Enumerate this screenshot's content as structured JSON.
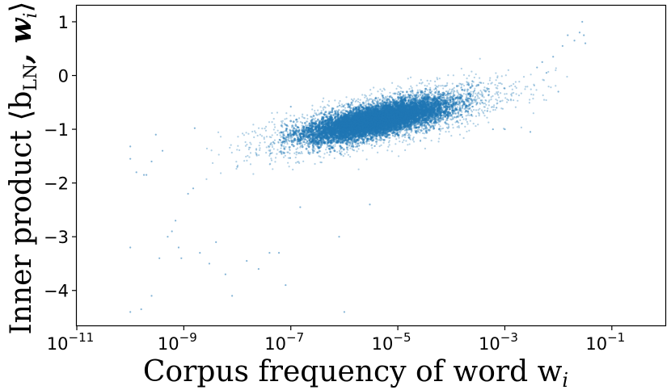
{
  "chart_data": {
    "type": "scatter",
    "title": "",
    "xlabel": "Corpus frequency of word w",
    "xlabel_subscript": "i",
    "ylabel": "Inner product ⟨b",
    "ylabel_subscript": "LN",
    "ylabel_tail": ", w",
    "ylabel_tail_subscript": "i",
    "ylabel_close": "⟩",
    "x_scale": "log",
    "xlim": [
      1e-11,
      1
    ],
    "ylim": [
      -4.65,
      1.3
    ],
    "x_ticks": [
      {
        "exponent": -11,
        "base": "10",
        "sup": "−11"
      },
      {
        "exponent": -9,
        "base": "10",
        "sup": "−9"
      },
      {
        "exponent": -7,
        "base": "10",
        "sup": "−7"
      },
      {
        "exponent": -5,
        "base": "10",
        "sup": "−5"
      },
      {
        "exponent": -3,
        "base": "10",
        "sup": "−3"
      },
      {
        "exponent": -1,
        "base": "10",
        "sup": "−1"
      }
    ],
    "y_ticks": [
      {
        "value": 1,
        "label": "1"
      },
      {
        "value": 0,
        "label": "0"
      },
      {
        "value": -1,
        "label": "−1"
      },
      {
        "value": -2,
        "label": "−2"
      },
      {
        "value": -3,
        "label": "−3"
      },
      {
        "value": -4,
        "label": "−4"
      }
    ],
    "grid": false,
    "point_color": "#1f77b4",
    "trend": {
      "slope_per_decade": 0.2,
      "value_at_1e-5": -0.75
    },
    "dense_core": {
      "x_range": [
        1e-07,
        0.0001
      ],
      "y_range": [
        -1.5,
        -0.4
      ]
    },
    "points": [
      {
        "x": 1e-10,
        "y": -1.32
      },
      {
        "x": 1e-10,
        "y": -1.55
      },
      {
        "x": 1e-10,
        "y": -3.2
      },
      {
        "x": 1e-10,
        "y": -4.4
      },
      {
        "x": 1.3e-10,
        "y": -1.8
      },
      {
        "x": 1.6e-10,
        "y": -4.35
      },
      {
        "x": 1.8e-10,
        "y": -1.85
      },
      {
        "x": 2e-10,
        "y": -1.85
      },
      {
        "x": 2.5e-10,
        "y": -4.1
      },
      {
        "x": 2.5e-10,
        "y": -1.6
      },
      {
        "x": 3e-10,
        "y": -1.1
      },
      {
        "x": 3.5e-10,
        "y": -3.4
      },
      {
        "x": 4e-10,
        "y": -1.4
      },
      {
        "x": 5e-10,
        "y": -3.0
      },
      {
        "x": 6e-10,
        "y": -2.9
      },
      {
        "x": 7e-10,
        "y": -2.7
      },
      {
        "x": 8e-10,
        "y": -3.2
      },
      {
        "x": 9e-10,
        "y": -3.4
      },
      {
        "x": 1.2e-09,
        "y": -2.2
      },
      {
        "x": 1.5e-09,
        "y": -2.1
      },
      {
        "x": 1.6e-09,
        "y": -0.98
      },
      {
        "x": 2e-09,
        "y": -3.3
      },
      {
        "x": 3e-09,
        "y": -3.5
      },
      {
        "x": 4e-09,
        "y": -3.1
      },
      {
        "x": 6e-09,
        "y": -3.7
      },
      {
        "x": 8e-09,
        "y": -4.1
      },
      {
        "x": 1e-08,
        "y": -1.7
      },
      {
        "x": 1.5e-08,
        "y": -3.45
      },
      {
        "x": 2.5e-08,
        "y": -3.6
      },
      {
        "x": 4e-08,
        "y": -3.3
      },
      {
        "x": 6e-08,
        "y": -3.3
      },
      {
        "x": 8e-08,
        "y": -3.9
      },
      {
        "x": 1e-07,
        "y": -0.58
      },
      {
        "x": 1.5e-07,
        "y": -2.45
      },
      {
        "x": 1e-06,
        "y": -4.4
      },
      {
        "x": 5e-06,
        "y": -0.55
      },
      {
        "x": 8e-07,
        "y": -3.0
      },
      {
        "x": 3e-06,
        "y": -2.4
      },
      {
        "x": 0.0006,
        "y": -1.0
      },
      {
        "x": 0.001,
        "y": -1.0
      },
      {
        "x": 0.003,
        "y": -1.05
      },
      {
        "x": 0.0007,
        "y": -0.6
      },
      {
        "x": 0.01,
        "y": -0.3
      },
      {
        "x": 0.008,
        "y": 0.35
      },
      {
        "x": 0.012,
        "y": 0.55
      },
      {
        "x": 0.015,
        "y": 0.75
      },
      {
        "x": 0.02,
        "y": 0.65
      },
      {
        "x": 0.025,
        "y": 0.8
      },
      {
        "x": 0.028,
        "y": 1.0
      },
      {
        "x": 0.03,
        "y": 0.75
      },
      {
        "x": 0.032,
        "y": 0.6
      },
      {
        "x": 0.004,
        "y": 0.15
      },
      {
        "x": 0.005,
        "y": 0.25
      },
      {
        "x": 0.006,
        "y": 0.05
      }
    ]
  }
}
